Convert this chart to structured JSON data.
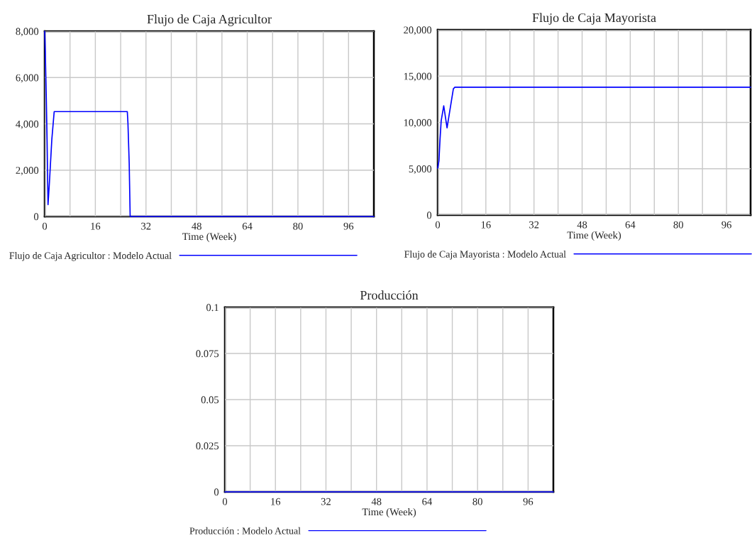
{
  "chart_data": [
    {
      "type": "line",
      "title": "Flujo de Caja Agricultor",
      "xlabel": "Time (Week)",
      "series": [
        {
          "name": "Flujo de Caja Agricultor : Modelo Actual",
          "color": "#0000ff",
          "x": [
            0,
            0.2,
            0.5,
            0.75,
            1.05,
            1.5,
            2.25,
            3,
            26.1,
            26.3,
            26.7,
            27,
            104
          ],
          "values": [
            8000,
            7060,
            5170,
            3320,
            510,
            1480,
            3320,
            4530,
            4530,
            4040,
            2300,
            0,
            0
          ]
        }
      ],
      "xlim": [
        0,
        104
      ],
      "ylim": [
        0,
        8000
      ],
      "xticks": [
        0,
        {
          "value": 8,
          "label": null
        },
        16,
        {
          "value": 24,
          "label": null
        },
        32,
        {
          "value": 40,
          "label": null
        },
        48,
        {
          "value": 56,
          "label": null
        },
        64,
        {
          "value": 72,
          "label": null
        },
        80,
        {
          "value": 88,
          "label": null
        },
        96
      ],
      "yticks": [
        0,
        {
          "value": 2000,
          "label": "2,000"
        },
        {
          "value": 4000,
          "label": "4,000"
        },
        {
          "value": 6000,
          "label": "6,000"
        },
        {
          "value": 8000,
          "label": "8,000"
        }
      ],
      "grid": true,
      "legend": "bottom"
    },
    {
      "type": "line",
      "title": "Flujo de Caja Mayorista",
      "xlabel": "Time (Week)",
      "series": [
        {
          "name": "Flujo de Caja Mayorista : Modelo Actual",
          "color": "#0000ff",
          "x": [
            0,
            0.4,
            0.76,
            1.15,
            2,
            3.1,
            5.2,
            5.7,
            104
          ],
          "values": [
            5060,
            5830,
            8130,
            10180,
            11790,
            9410,
            13630,
            13800,
            13800
          ]
        }
      ],
      "xlim": [
        0,
        104
      ],
      "ylim": [
        0,
        20000
      ],
      "xticks": [
        0,
        {
          "value": 8,
          "label": null
        },
        16,
        {
          "value": 24,
          "label": null
        },
        32,
        {
          "value": 40,
          "label": null
        },
        48,
        {
          "value": 56,
          "label": null
        },
        64,
        {
          "value": 72,
          "label": null
        },
        80,
        {
          "value": 88,
          "label": null
        },
        96
      ],
      "yticks": [
        0,
        {
          "value": 5000,
          "label": "5,000"
        },
        {
          "value": 10000,
          "label": "10,000"
        },
        {
          "value": 15000,
          "label": "15,000"
        },
        {
          "value": 20000,
          "label": "20,000"
        }
      ],
      "grid": true,
      "legend": "bottom"
    },
    {
      "type": "line",
      "title": "Producción",
      "xlabel": "Time (Week)",
      "series": [
        {
          "name": "Producción : Modelo Actual",
          "color": "#0000ff",
          "x": [
            0,
            104
          ],
          "values": [
            0,
            0
          ]
        }
      ],
      "xlim": [
        0,
        104
      ],
      "ylim": [
        0,
        0.1
      ],
      "xticks": [
        0,
        {
          "value": 8,
          "label": null
        },
        16,
        {
          "value": 24,
          "label": null
        },
        32,
        {
          "value": 40,
          "label": null
        },
        48,
        {
          "value": 56,
          "label": null
        },
        64,
        {
          "value": 72,
          "label": null
        },
        80,
        {
          "value": 88,
          "label": null
        },
        96
      ],
      "yticks": [
        0,
        0.025,
        0.05,
        0.075,
        0.1
      ],
      "grid": true,
      "legend": "bottom"
    }
  ]
}
